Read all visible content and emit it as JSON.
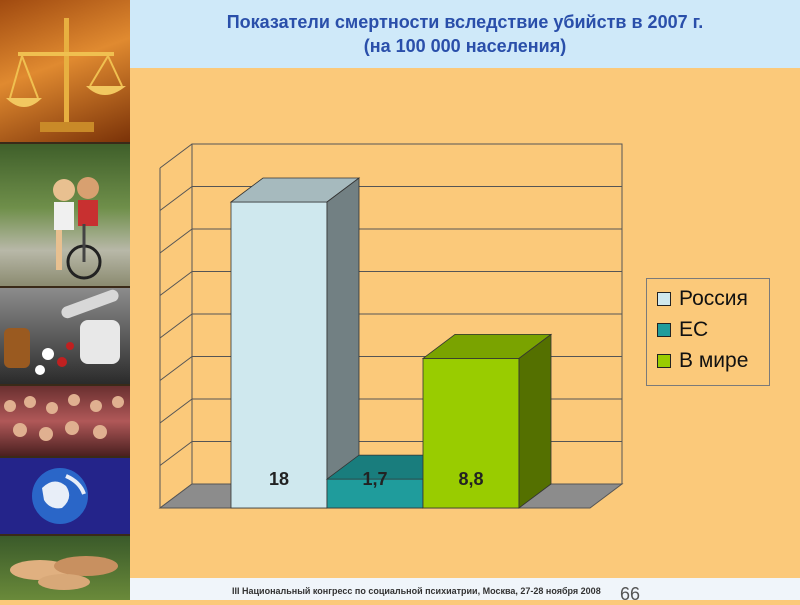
{
  "header": {
    "title_line1": "Показатели смертности вследствие убийств в 2007 г.",
    "title_line2": "(на 100 000 населения)"
  },
  "footer": {
    "text": "III Национальный конгресс по социальной психиатрии, Москва, 27-28 ноября 2008",
    "slide_number": "66"
  },
  "colors": {
    "background": "#fbc97a",
    "title": "#2a4faa",
    "russia": "#cfe8ee",
    "eu": "#1f9c9c",
    "world": "#99cc00"
  },
  "chart_data": {
    "type": "bar",
    "title": "Показатели смертности вследствие убийств в 2007 г. (на 100 000 населения)",
    "categories": [
      "Россия",
      "ЕС",
      "В мире"
    ],
    "values": [
      18,
      1.7,
      8.8
    ],
    "value_labels": [
      "18",
      "1,7",
      "8,8"
    ],
    "ylim": [
      0,
      20
    ],
    "grid": true,
    "three_d": true,
    "legend": "right",
    "xlabel": "",
    "ylabel": ""
  }
}
